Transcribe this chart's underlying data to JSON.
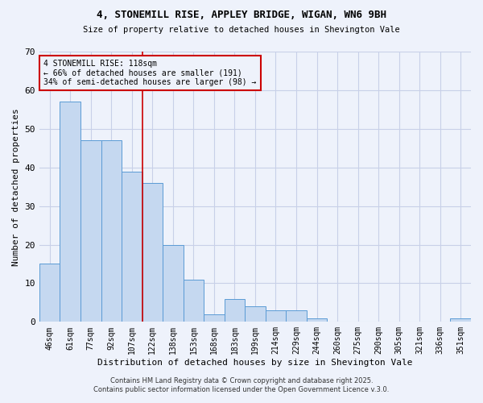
{
  "title1": "4, STONEMILL RISE, APPLEY BRIDGE, WIGAN, WN6 9BH",
  "title2": "Size of property relative to detached houses in Shevington Vale",
  "xlabel": "Distribution of detached houses by size in Shevington Vale",
  "ylabel": "Number of detached properties",
  "categories": [
    "46sqm",
    "61sqm",
    "77sqm",
    "92sqm",
    "107sqm",
    "122sqm",
    "138sqm",
    "153sqm",
    "168sqm",
    "183sqm",
    "199sqm",
    "214sqm",
    "229sqm",
    "244sqm",
    "260sqm",
    "275sqm",
    "290sqm",
    "305sqm",
    "321sqm",
    "336sqm",
    "351sqm"
  ],
  "values": [
    15,
    57,
    47,
    47,
    39,
    36,
    20,
    11,
    2,
    6,
    4,
    3,
    3,
    1,
    0,
    0,
    0,
    0,
    0,
    0,
    1
  ],
  "bar_color": "#c5d8f0",
  "bar_edge_color": "#5b9bd5",
  "annotation_title": "4 STONEMILL RISE: 118sqm",
  "annotation_line1": "← 66% of detached houses are smaller (191)",
  "annotation_line2": "34% of semi-detached houses are larger (98) →",
  "ylim": [
    0,
    70
  ],
  "yticks": [
    0,
    10,
    20,
    30,
    40,
    50,
    60,
    70
  ],
  "footer1": "Contains HM Land Registry data © Crown copyright and database right 2025.",
  "footer2": "Contains public sector information licensed under the Open Government Licence v.3.0.",
  "bg_color": "#eef2fb",
  "grid_color": "#c8d0e8",
  "annotation_box_color": "#cc0000",
  "red_line_index": 5
}
